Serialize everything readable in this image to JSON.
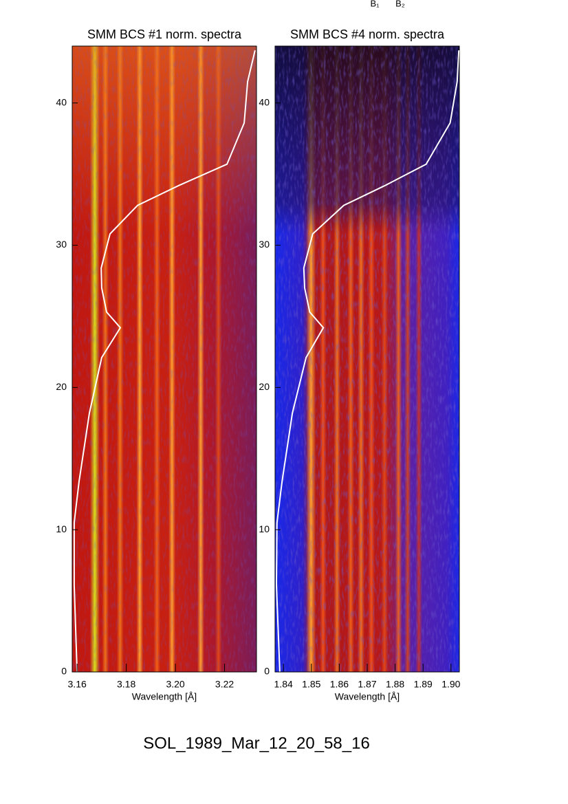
{
  "top_labels": [
    "B₁",
    "B₂"
  ],
  "footer": "SOL_1989_Mar_12_20_58_16",
  "chart_data": [
    {
      "type": "spectrogram",
      "title": "SMM BCS #1 norm. spectra",
      "xlabel": "Wavelength [Å]",
      "xlim": [
        3.158,
        3.233
      ],
      "xticks": [
        3.16,
        3.18,
        {
          "value": 3.2,
          "label": "3.20"
        },
        3.22
      ],
      "ylim": [
        0,
        44
      ],
      "yticks": [
        0,
        10,
        20,
        30,
        40
      ],
      "lines": [
        3.1672,
        3.1715,
        3.1775,
        3.1855,
        3.1925,
        3.1986,
        3.2103,
        3.2175
      ],
      "line_colors": [
        "#d8e020",
        "#f07018",
        "#f07018",
        "#ffa030",
        "#f06018",
        "#ffa030",
        "#ffa030",
        "#e04818"
      ],
      "color": "#ffffff",
      "curve": {
        "x": [
          3.16,
          3.1588,
          3.1588,
          3.1608,
          3.165,
          3.17,
          3.1776,
          3.172,
          3.17,
          3.1698,
          3.1734,
          3.1846,
          3.2014,
          3.221,
          3.228,
          3.2294,
          3.2324
        ],
        "y": [
          0,
          6.1,
          10.5,
          13.4,
          18.2,
          22.1,
          24.2,
          25.3,
          27.0,
          28.4,
          30.8,
          32.8,
          34.2,
          35.7,
          38.6,
          41.5,
          43.7
        ]
      }
    },
    {
      "type": "spectrogram",
      "title": "SMM BCS #4 norm. spectra",
      "xlabel": "Wavelength [Å]",
      "xlim": [
        1.837,
        1.903
      ],
      "xticks": [
        1.84,
        1.85,
        1.86,
        1.87,
        1.88,
        1.89,
        {
          "value": 1.9,
          "label": "1.90"
        }
      ],
      "ylim": [
        0,
        44
      ],
      "yticks": [
        0,
        10,
        20,
        30,
        40
      ],
      "lines": [
        1.8499,
        1.8542,
        1.8592,
        1.8641,
        1.8678,
        1.8715,
        1.8762,
        1.8812,
        1.8845,
        1.8885
      ],
      "line_colors": [
        "#ffa030",
        "#f05018",
        "#f07020",
        "#f06018",
        "#f07020",
        "#f05018",
        "#e04818",
        "#f06018",
        "#d04020",
        "#c03030"
      ],
      "color": "#ffffff",
      "curve": {
        "x": [
          1.8387,
          1.8375,
          1.8377,
          1.8395,
          1.8432,
          1.8481,
          1.8543,
          1.8494,
          1.8476,
          1.8473,
          1.8505,
          1.8616,
          1.8764,
          1.8911,
          1.8997,
          1.9022,
          1.9028
        ],
        "y": [
          0,
          6.1,
          10.5,
          13.4,
          18.2,
          22.1,
          24.2,
          25.3,
          27.0,
          28.4,
          30.8,
          32.8,
          34.2,
          35.7,
          38.6,
          41.5,
          43.7
        ]
      }
    }
  ]
}
